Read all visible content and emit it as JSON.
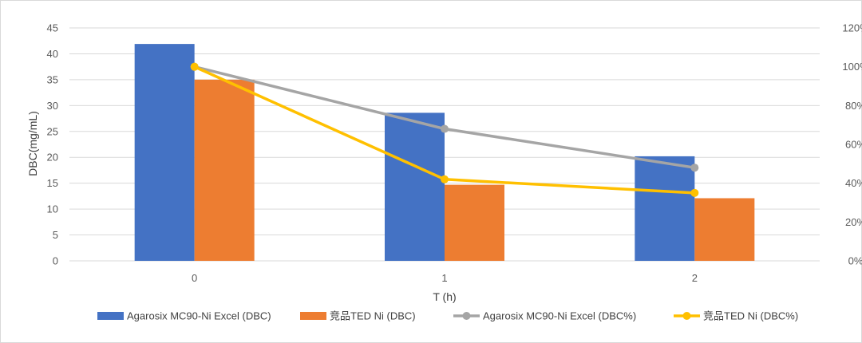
{
  "chart_data": {
    "type": "bar",
    "title": "",
    "xlabel": "T (h)",
    "ylabel": "DBC(mg/mL)",
    "categories": [
      "0",
      "1",
      "2"
    ],
    "ylim": [
      0,
      45
    ],
    "y_ticks": [
      0,
      5,
      10,
      15,
      20,
      25,
      30,
      35,
      40,
      45
    ],
    "y2lim": [
      0,
      120
    ],
    "y2_ticks": [
      0,
      20,
      40,
      60,
      80,
      100,
      120
    ],
    "y2_tick_labels": [
      "0%",
      "20%",
      "40%",
      "60%",
      "80%",
      "100%",
      "120%"
    ],
    "grid": true,
    "legend_position": "bottom",
    "bar_series": [
      {
        "name": "Agarosix MC90-Ni Excel (DBC)",
        "color": "#4472C4",
        "values": [
          41.9,
          28.6,
          20.2
        ]
      },
      {
        "name": "竞品TED Ni (DBC)",
        "color": "#ED7D31",
        "values": [
          35.0,
          14.7,
          12.1
        ]
      }
    ],
    "line_series": [
      {
        "name": "Agarosix MC90-Ni Excel (DBC%)",
        "color": "#A5A5A5",
        "axis": "right",
        "values": [
          100,
          68,
          48
        ]
      },
      {
        "name": "竞品TED Ni (DBC%)",
        "color": "#FFC000",
        "axis": "right",
        "values": [
          100,
          42,
          35
        ]
      }
    ]
  }
}
